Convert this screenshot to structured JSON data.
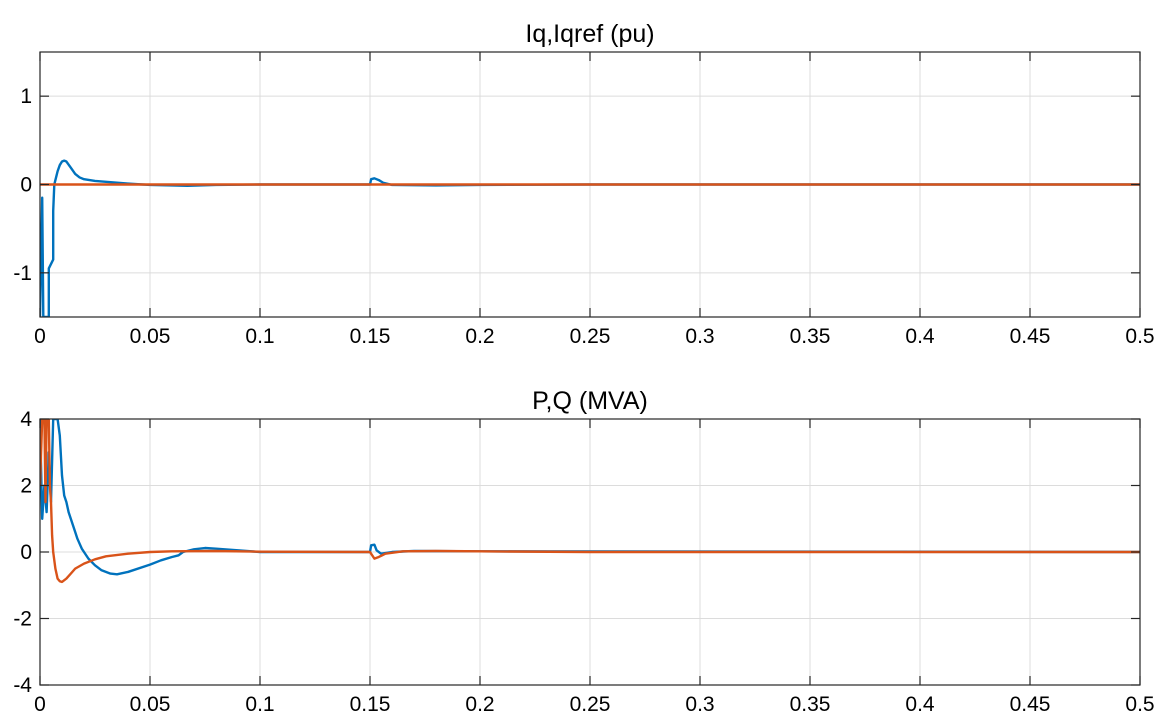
{
  "chart_data": [
    {
      "type": "line",
      "title": "Iq,Iqref (pu)",
      "xlabel": "",
      "ylabel": "",
      "xlim": [
        0,
        0.5
      ],
      "ylim": [
        -1.5,
        1.5
      ],
      "grid": true,
      "xticks": [
        0,
        0.05,
        0.1,
        0.15,
        0.2,
        0.25,
        0.3,
        0.35,
        0.4,
        0.45,
        0.5
      ],
      "xtick_labels": [
        "0",
        "0.05",
        "0.1",
        "0.15",
        "0.2",
        "0.25",
        "0.3",
        "0.35",
        "0.4",
        "0.45",
        "0.5"
      ],
      "yticks": [
        -1,
        0,
        1
      ],
      "ytick_labels": [
        "-1",
        "0",
        "1"
      ],
      "series": [
        {
          "color": "#0072BD",
          "points": [
            [
              0,
              -1.5
            ],
            [
              0.001,
              -0.15
            ],
            [
              0.0015,
              -1.5
            ],
            [
              0.004,
              -1.5
            ],
            [
              0.004,
              -0.95
            ],
            [
              0.006,
              -0.85
            ],
            [
              0.006,
              -0.3
            ],
            [
              0.0065,
              0.0
            ],
            [
              0.007,
              0.05
            ],
            [
              0.0075,
              0.1
            ],
            [
              0.008,
              0.15
            ],
            [
              0.009,
              0.22
            ],
            [
              0.01,
              0.26
            ],
            [
              0.011,
              0.27
            ],
            [
              0.012,
              0.26
            ],
            [
              0.014,
              0.19
            ],
            [
              0.016,
              0.12
            ],
            [
              0.018,
              0.08
            ],
            [
              0.02,
              0.06
            ],
            [
              0.025,
              0.04
            ],
            [
              0.03,
              0.03
            ],
            [
              0.04,
              0.01
            ],
            [
              0.05,
              -0.005
            ],
            [
              0.06,
              -0.01
            ],
            [
              0.067,
              -0.015
            ],
            [
              0.08,
              -0.005
            ],
            [
              0.1,
              0.0
            ],
            [
              0.15,
              0.0
            ],
            [
              0.1505,
              0.06
            ],
            [
              0.152,
              0.07
            ],
            [
              0.154,
              0.05
            ],
            [
              0.156,
              0.02
            ],
            [
              0.16,
              -0.005
            ],
            [
              0.18,
              -0.01
            ],
            [
              0.2,
              -0.005
            ],
            [
              0.25,
              0.0
            ],
            [
              0.3,
              0.0
            ],
            [
              0.5,
              0.0
            ]
          ]
        },
        {
          "color": "#D95319",
          "points": [
            [
              0,
              0.0
            ],
            [
              0.5,
              0.0
            ]
          ]
        }
      ]
    },
    {
      "type": "line",
      "title": "P,Q (MVA)",
      "xlabel": "",
      "ylabel": "",
      "xlim": [
        0,
        0.5
      ],
      "ylim": [
        -4,
        4
      ],
      "grid": true,
      "xticks": [
        0,
        0.05,
        0.1,
        0.15,
        0.2,
        0.25,
        0.3,
        0.35,
        0.4,
        0.45,
        0.5
      ],
      "xtick_labels": [
        "0",
        "0.05",
        "0.1",
        "0.15",
        "0.2",
        "0.25",
        "0.3",
        "0.35",
        "0.4",
        "0.45",
        "0.5"
      ],
      "yticks": [
        -4,
        -2,
        0,
        2,
        4
      ],
      "ytick_labels": [
        "-4",
        "-2",
        "0",
        "2",
        "4"
      ],
      "series": [
        {
          "color": "#0072BD",
          "points": [
            [
              0,
              4
            ],
            [
              0.001,
              1.0
            ],
            [
              0.002,
              2.0
            ],
            [
              0.003,
              1.2
            ],
            [
              0.004,
              3.0
            ],
            [
              0.005,
              1.5
            ],
            [
              0.006,
              4
            ],
            [
              0.008,
              4
            ],
            [
              0.009,
              3.5
            ],
            [
              0.01,
              2.3
            ],
            [
              0.011,
              1.7
            ],
            [
              0.012,
              1.5
            ],
            [
              0.013,
              1.2
            ],
            [
              0.014,
              1.0
            ],
            [
              0.015,
              0.8
            ],
            [
              0.016,
              0.6
            ],
            [
              0.017,
              0.4
            ],
            [
              0.018,
              0.25
            ],
            [
              0.019,
              0.1
            ],
            [
              0.02,
              0.0
            ],
            [
              0.022,
              -0.2
            ],
            [
              0.025,
              -0.4
            ],
            [
              0.028,
              -0.55
            ],
            [
              0.032,
              -0.65
            ],
            [
              0.035,
              -0.67
            ],
            [
              0.04,
              -0.6
            ],
            [
              0.05,
              -0.38
            ],
            [
              0.055,
              -0.25
            ],
            [
              0.06,
              -0.15
            ],
            [
              0.063,
              -0.1
            ],
            [
              0.065,
              0.0
            ],
            [
              0.07,
              0.08
            ],
            [
              0.075,
              0.12
            ],
            [
              0.08,
              0.1
            ],
            [
              0.09,
              0.05
            ],
            [
              0.1,
              0.0
            ],
            [
              0.15,
              0.0
            ],
            [
              0.1505,
              0.2
            ],
            [
              0.152,
              0.22
            ],
            [
              0.153,
              0.05
            ],
            [
              0.155,
              -0.05
            ],
            [
              0.16,
              0.0
            ],
            [
              0.17,
              0.03
            ],
            [
              0.2,
              0.02
            ],
            [
              0.5,
              0.0
            ]
          ]
        },
        {
          "color": "#D95319",
          "points": [
            [
              0,
              2.0
            ],
            [
              0.001,
              4
            ],
            [
              0.002,
              4
            ],
            [
              0.0025,
              1.5
            ],
            [
              0.003,
              4
            ],
            [
              0.004,
              4
            ],
            [
              0.0045,
              2.0
            ],
            [
              0.005,
              1.5
            ],
            [
              0.0055,
              0.5
            ],
            [
              0.006,
              0.0
            ],
            [
              0.007,
              -0.5
            ],
            [
              0.008,
              -0.8
            ],
            [
              0.009,
              -0.88
            ],
            [
              0.01,
              -0.9
            ],
            [
              0.012,
              -0.8
            ],
            [
              0.014,
              -0.65
            ],
            [
              0.016,
              -0.5
            ],
            [
              0.02,
              -0.35
            ],
            [
              0.025,
              -0.22
            ],
            [
              0.03,
              -0.13
            ],
            [
              0.04,
              -0.05
            ],
            [
              0.05,
              0.0
            ],
            [
              0.06,
              0.02
            ],
            [
              0.08,
              0.03
            ],
            [
              0.1,
              0.01
            ],
            [
              0.15,
              0.0
            ],
            [
              0.1505,
              -0.05
            ],
            [
              0.152,
              -0.2
            ],
            [
              0.154,
              -0.15
            ],
            [
              0.157,
              -0.05
            ],
            [
              0.165,
              0.02
            ],
            [
              0.18,
              0.03
            ],
            [
              0.2,
              0.02
            ],
            [
              0.25,
              0.0
            ],
            [
              0.5,
              0.0
            ]
          ]
        }
      ]
    }
  ]
}
